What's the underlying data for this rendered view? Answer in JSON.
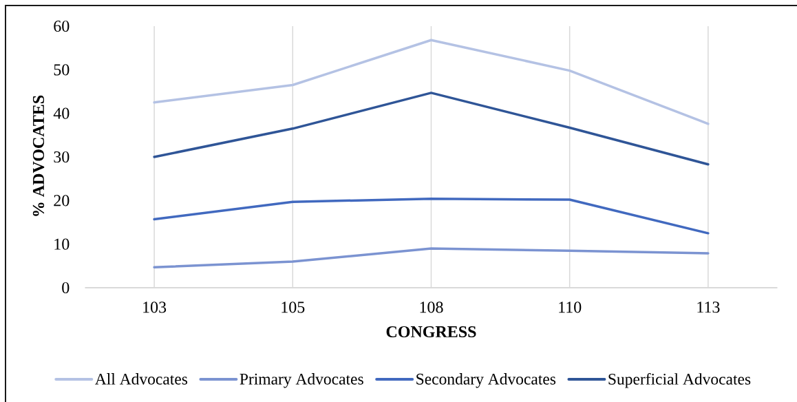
{
  "chart_data": {
    "type": "line",
    "xlabel": "CONGRESS",
    "ylabel": "% ADVOCATES",
    "categories": [
      "103",
      "105",
      "108",
      "110",
      "113"
    ],
    "series": [
      {
        "name": "All Advocates",
        "color": "#b4c2e4",
        "values": [
          42.5,
          46.5,
          56.8,
          49.8,
          37.6
        ]
      },
      {
        "name": "Primary Advocates",
        "color": "#7b93d1",
        "values": [
          4.7,
          6.0,
          9.0,
          8.5,
          7.9
        ]
      },
      {
        "name": "Secondary Advocates",
        "color": "#4169bf",
        "values": [
          15.7,
          19.7,
          20.4,
          20.2,
          12.5
        ]
      },
      {
        "name": "Superficial Advocates",
        "color": "#2f5597",
        "values": [
          30.0,
          36.5,
          44.7,
          36.7,
          28.3
        ]
      }
    ],
    "ylim": [
      0,
      60
    ],
    "yticks": [
      0,
      10,
      20,
      30,
      40,
      50,
      60
    ],
    "grid": "x",
    "legend": "bottom"
  }
}
